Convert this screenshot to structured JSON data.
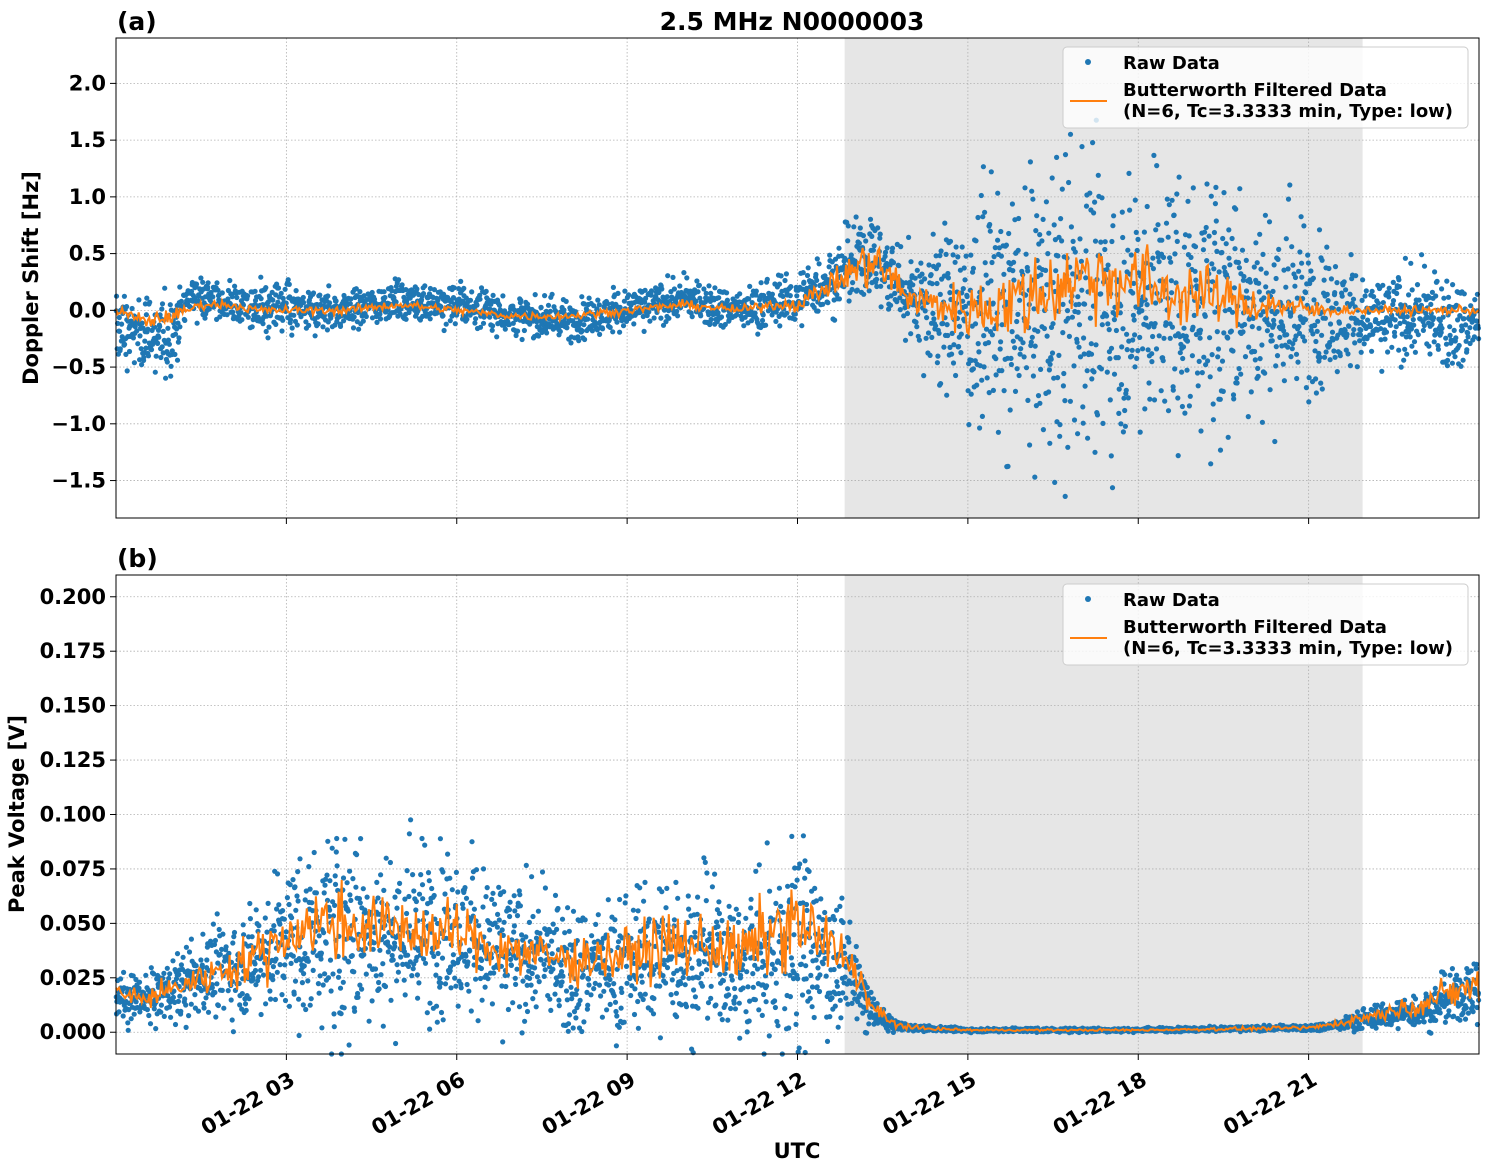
{
  "figure": {
    "title": "2.5 MHz N0000003",
    "xlabel": "UTC",
    "x_tick_labels": [
      "01-22 03",
      "01-22 06",
      "01-22 09",
      "01-22 12",
      "01-22 15",
      "01-22 18",
      "01-22 21"
    ],
    "colors": {
      "raw": "#1f77b4",
      "filtered": "#ff7f0e",
      "shade": "#e6e6e6",
      "grid": "#b0b0b0"
    }
  },
  "chart_data": [
    {
      "type": "scatter",
      "panel_label": "(a)",
      "ylabel": "Doppler Shift [Hz]",
      "x_hours_utc": [
        0,
        24
      ],
      "ylim": [
        -1.83,
        2.4
      ],
      "y_ticks": [
        2.0,
        1.5,
        1.0,
        0.5,
        0.0,
        -0.5,
        -1.0,
        -1.5
      ],
      "y_tick_labels": [
        "2.0",
        "1.5",
        "1.0",
        "0.5",
        "0.0",
        "−0.5",
        "−1.0",
        "−1.5"
      ],
      "shaded_interval_hours": [
        12.83,
        21.95
      ],
      "grid": true,
      "legend": {
        "placement": "top-right",
        "entries": [
          "Raw Data",
          "Butterworth Filtered Data\n(N=6, Tc=3.3333 min, Type: low)"
        ]
      },
      "series": [
        {
          "name": "Raw Data",
          "kind": "points",
          "x": [
            0.0,
            0.5,
            0.9,
            1.3,
            2.0,
            3.0,
            4.0,
            5.0,
            6.0,
            7.0,
            8.0,
            9.0,
            10.0,
            11.0,
            12.0,
            12.7,
            13.3,
            13.8,
            14.5,
            15.5,
            16.5,
            17.5,
            18.5,
            19.5,
            20.5,
            21.5,
            22.0,
            23.0,
            24.0
          ],
          "center": [
            -0.15,
            -0.2,
            -0.25,
            0.15,
            0.05,
            0.0,
            0.0,
            0.1,
            0.05,
            -0.05,
            -0.1,
            0.0,
            0.1,
            0.0,
            0.1,
            0.3,
            0.5,
            0.2,
            0.0,
            0.0,
            0.0,
            0.05,
            0.05,
            0.05,
            0.0,
            -0.05,
            -0.1,
            -0.05,
            -0.15
          ],
          "spread": [
            0.25,
            0.25,
            0.35,
            0.15,
            0.15,
            0.2,
            0.15,
            0.15,
            0.15,
            0.15,
            0.15,
            0.15,
            0.15,
            0.15,
            0.2,
            0.25,
            0.35,
            0.3,
            0.6,
            0.9,
            1.1,
            1.1,
            1.0,
            0.9,
            0.8,
            0.45,
            0.3,
            0.35,
            0.3
          ]
        },
        {
          "name": "Butterworth Filtered Data\n(N=6, Tc=3.3333 min, Type: low)",
          "kind": "line",
          "x": [
            0.0,
            0.5,
            1.0,
            1.5,
            2.0,
            2.5,
            3.0,
            4.0,
            5.0,
            6.0,
            7.0,
            8.0,
            9.0,
            10.0,
            11.0,
            11.5,
            12.0,
            12.5,
            13.0,
            13.3,
            13.6,
            14.0,
            14.5,
            15.0,
            15.5,
            16.0,
            16.5,
            17.0,
            17.5,
            18.0,
            18.5,
            19.0,
            19.5,
            20.0,
            20.5,
            21.0,
            21.5,
            22.0,
            23.0,
            24.0
          ],
          "y": [
            0.0,
            -0.1,
            -0.05,
            0.05,
            0.05,
            0.0,
            0.0,
            0.0,
            0.05,
            0.0,
            -0.05,
            -0.05,
            0.0,
            0.05,
            0.0,
            0.05,
            0.05,
            0.2,
            0.35,
            0.45,
            0.3,
            0.1,
            0.05,
            0.0,
            0.05,
            0.1,
            0.2,
            0.3,
            0.3,
            0.25,
            0.15,
            0.15,
            0.1,
            0.05,
            0.05,
            0.0,
            0.0,
            0.0,
            0.0,
            0.0
          ],
          "jitter": [
            0.04,
            0.06,
            0.05,
            0.03,
            0.03,
            0.03,
            0.03,
            0.03,
            0.03,
            0.03,
            0.03,
            0.03,
            0.03,
            0.03,
            0.03,
            0.04,
            0.05,
            0.08,
            0.15,
            0.2,
            0.18,
            0.12,
            0.15,
            0.2,
            0.25,
            0.3,
            0.3,
            0.3,
            0.3,
            0.3,
            0.25,
            0.22,
            0.18,
            0.15,
            0.1,
            0.08,
            0.04,
            0.03,
            0.03,
            0.03
          ]
        }
      ]
    },
    {
      "type": "scatter",
      "panel_label": "(b)",
      "ylabel": "Peak Voltage [V]",
      "x_hours_utc": [
        0,
        24
      ],
      "ylim": [
        -0.01,
        0.21
      ],
      "y_ticks": [
        0.2,
        0.175,
        0.15,
        0.125,
        0.1,
        0.075,
        0.05,
        0.025,
        0.0
      ],
      "y_tick_labels": [
        "0.200",
        "0.175",
        "0.150",
        "0.125",
        "0.100",
        "0.075",
        "0.050",
        "0.025",
        "0.000"
      ],
      "shaded_interval_hours": [
        12.83,
        21.95
      ],
      "grid": true,
      "legend": {
        "placement": "top-right",
        "entries": [
          "Raw Data",
          "Butterworth Filtered Data\n(N=6, Tc=3.3333 min, Type: low)"
        ]
      },
      "series": [
        {
          "name": "Raw Data",
          "kind": "points",
          "x": [
            0.0,
            0.5,
            1.0,
            1.5,
            2.0,
            2.5,
            3.0,
            3.5,
            4.0,
            4.5,
            5.0,
            5.5,
            6.0,
            6.5,
            7.0,
            7.5,
            8.0,
            8.5,
            9.0,
            9.5,
            10.0,
            10.5,
            11.0,
            11.5,
            12.0,
            12.5,
            12.8,
            13.0,
            13.3,
            13.6,
            14.0,
            15.0,
            18.0,
            21.0,
            21.5,
            22.0,
            22.5,
            23.0,
            23.5,
            24.0
          ],
          "center": [
            0.015,
            0.015,
            0.02,
            0.025,
            0.03,
            0.035,
            0.04,
            0.045,
            0.045,
            0.045,
            0.045,
            0.045,
            0.045,
            0.04,
            0.035,
            0.035,
            0.03,
            0.03,
            0.03,
            0.035,
            0.035,
            0.035,
            0.03,
            0.035,
            0.04,
            0.035,
            0.03,
            0.025,
            0.01,
            0.004,
            0.002,
            0.001,
            0.001,
            0.002,
            0.003,
            0.006,
            0.008,
            0.01,
            0.015,
            0.02
          ],
          "spread": [
            0.008,
            0.01,
            0.012,
            0.015,
            0.02,
            0.025,
            0.03,
            0.035,
            0.04,
            0.035,
            0.035,
            0.035,
            0.03,
            0.03,
            0.028,
            0.025,
            0.025,
            0.025,
            0.025,
            0.03,
            0.03,
            0.028,
            0.03,
            0.04,
            0.045,
            0.03,
            0.02,
            0.015,
            0.008,
            0.003,
            0.001,
            0.0008,
            0.0008,
            0.001,
            0.002,
            0.004,
            0.005,
            0.007,
            0.01,
            0.015
          ]
        },
        {
          "name": "Butterworth Filtered Data\n(N=6, Tc=3.3333 min, Type: low)",
          "kind": "line",
          "x": [
            0.0,
            0.5,
            1.0,
            1.5,
            2.0,
            2.5,
            3.0,
            3.5,
            4.0,
            4.5,
            5.0,
            5.5,
            6.0,
            6.5,
            7.0,
            7.5,
            8.0,
            8.5,
            9.0,
            9.5,
            10.0,
            10.5,
            11.0,
            11.5,
            12.0,
            12.5,
            12.8,
            13.0,
            13.3,
            13.6,
            14.0,
            15.0,
            18.0,
            21.0,
            21.5,
            22.0,
            22.5,
            23.0,
            23.5,
            24.0
          ],
          "y": [
            0.018,
            0.015,
            0.02,
            0.025,
            0.03,
            0.035,
            0.045,
            0.05,
            0.05,
            0.048,
            0.048,
            0.045,
            0.045,
            0.04,
            0.038,
            0.035,
            0.033,
            0.035,
            0.035,
            0.04,
            0.04,
            0.04,
            0.035,
            0.045,
            0.05,
            0.04,
            0.035,
            0.03,
            0.012,
            0.005,
            0.002,
            0.001,
            0.001,
            0.002,
            0.004,
            0.007,
            0.01,
            0.013,
            0.018,
            0.022
          ],
          "jitter": [
            0.004,
            0.004,
            0.005,
            0.006,
            0.008,
            0.01,
            0.012,
            0.014,
            0.014,
            0.012,
            0.012,
            0.012,
            0.012,
            0.01,
            0.01,
            0.01,
            0.009,
            0.01,
            0.01,
            0.012,
            0.012,
            0.012,
            0.012,
            0.015,
            0.016,
            0.012,
            0.009,
            0.007,
            0.004,
            0.002,
            0.0008,
            0.0004,
            0.0004,
            0.0008,
            0.0015,
            0.002,
            0.003,
            0.004,
            0.006,
            0.008
          ]
        }
      ]
    }
  ]
}
